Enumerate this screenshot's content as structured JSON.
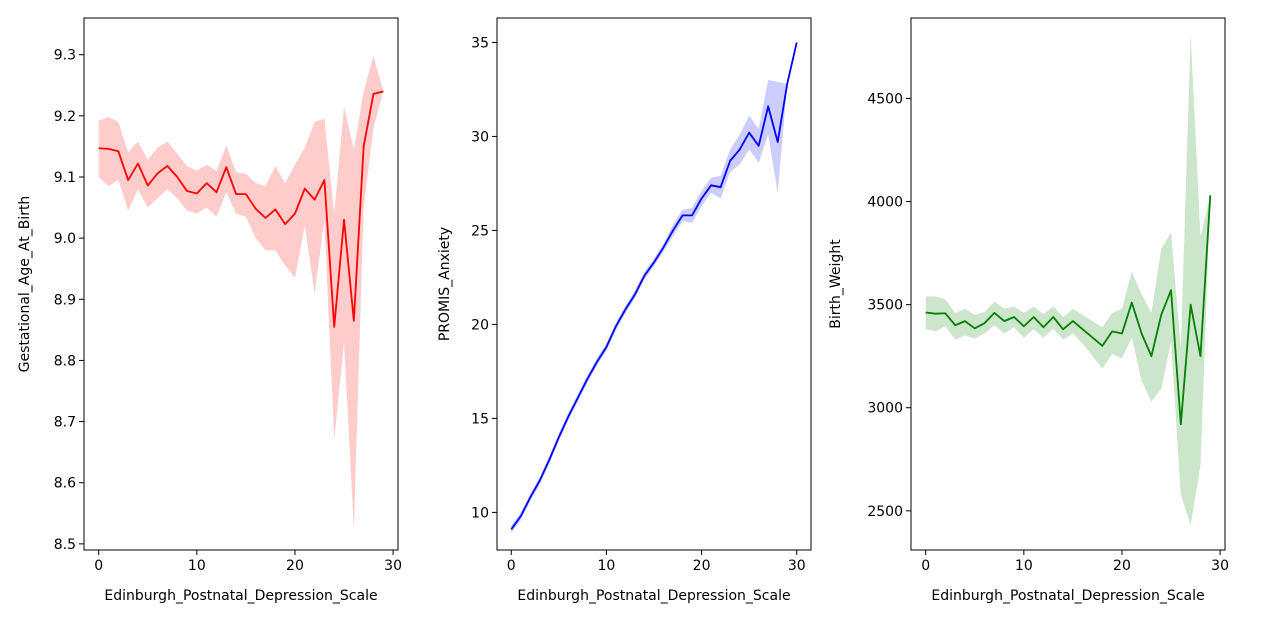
{
  "chart_data": [
    {
      "type": "line",
      "title": "",
      "xlabel": "Edinburgh_Postnatal_Depression_Scale",
      "ylabel": "Gestational_Age_At_Birth",
      "xlim": [
        -1.5,
        30.5
      ],
      "ylim": [
        8.49,
        9.36
      ],
      "xticks": [
        0,
        10,
        20,
        30
      ],
      "yticks": [
        8.5,
        8.6,
        8.7,
        8.8,
        8.9,
        9.0,
        9.1,
        9.2,
        9.3
      ],
      "ytick_labels": [
        "8.5",
        "8.6",
        "8.7",
        "8.8",
        "8.9",
        "9.0",
        "9.1",
        "9.2",
        "9.3"
      ],
      "grid": false,
      "color": "#ff0000",
      "band_color": "#ff0000",
      "series": [
        {
          "x": [
            0,
            1,
            2,
            3,
            4,
            5,
            6,
            7,
            8,
            9,
            10,
            11,
            12,
            13,
            14,
            15,
            16,
            17,
            18,
            19,
            20,
            21,
            22,
            23,
            24,
            25,
            26,
            27,
            28,
            29
          ],
          "y": [
            9.147,
            9.146,
            9.142,
            9.095,
            9.122,
            9.086,
            9.106,
            9.118,
            9.1,
            9.077,
            9.073,
            9.09,
            9.075,
            9.116,
            9.072,
            9.072,
            9.048,
            9.033,
            9.047,
            9.023,
            9.04,
            9.081,
            9.063,
            9.095,
            8.855,
            9.03,
            8.865,
            9.15,
            9.236,
            9.24
          ],
          "lower": [
            9.1,
            9.085,
            9.095,
            9.045,
            9.08,
            9.05,
            9.065,
            9.08,
            9.065,
            9.045,
            9.04,
            9.05,
            9.035,
            9.075,
            9.04,
            9.035,
            9.0,
            8.98,
            8.98,
            8.955,
            8.935,
            9.02,
            8.91,
            9.03,
            8.67,
            8.83,
            8.525,
            9.05,
            9.18,
            9.24
          ],
          "upper": [
            9.192,
            9.198,
            9.19,
            9.14,
            9.158,
            9.128,
            9.148,
            9.158,
            9.138,
            9.118,
            9.11,
            9.12,
            9.11,
            9.152,
            9.108,
            9.105,
            9.09,
            9.085,
            9.118,
            9.09,
            9.12,
            9.148,
            9.19,
            9.195,
            9.04,
            9.215,
            9.145,
            9.24,
            9.298,
            9.24
          ]
        }
      ]
    },
    {
      "type": "line",
      "title": "",
      "xlabel": "Edinburgh_Postnatal_Depression_Scale",
      "ylabel": "PROMIS_Anxiety",
      "xlim": [
        -1.5,
        31.5
      ],
      "ylim": [
        8.0,
        36.3
      ],
      "xticks": [
        0,
        10,
        20,
        30
      ],
      "yticks": [
        10,
        15,
        20,
        25,
        30,
        35
      ],
      "ytick_labels": [
        "10",
        "15",
        "20",
        "25",
        "30",
        "35"
      ],
      "grid": false,
      "color": "#0000ff",
      "band_color": "#0000ff",
      "series": [
        {
          "x": [
            0,
            1,
            2,
            3,
            4,
            5,
            6,
            7,
            8,
            9,
            10,
            11,
            12,
            13,
            14,
            15,
            16,
            17,
            18,
            19,
            20,
            21,
            22,
            23,
            24,
            25,
            26,
            27,
            28,
            29,
            30
          ],
          "y": [
            9.1,
            9.8,
            10.8,
            11.7,
            12.8,
            14.0,
            15.1,
            16.1,
            17.1,
            18.0,
            18.8,
            19.9,
            20.8,
            21.6,
            22.6,
            23.3,
            24.1,
            25.0,
            25.8,
            25.8,
            26.7,
            27.4,
            27.3,
            28.7,
            29.3,
            30.2,
            29.5,
            31.6,
            29.7,
            32.8,
            35.0
          ],
          "lower": [
            8.9,
            9.6,
            10.6,
            11.5,
            12.6,
            13.8,
            14.9,
            15.9,
            16.9,
            17.8,
            18.6,
            19.7,
            20.6,
            21.4,
            22.4,
            23.1,
            23.9,
            24.7,
            25.5,
            25.4,
            26.3,
            27.0,
            26.7,
            28.1,
            28.5,
            29.3,
            28.6,
            30.1,
            27.0,
            32.8,
            35.0
          ],
          "upper": [
            9.3,
            10.0,
            11.0,
            11.9,
            13.0,
            14.2,
            15.3,
            16.3,
            17.3,
            18.2,
            19.0,
            20.1,
            21.0,
            21.8,
            22.8,
            23.5,
            24.3,
            25.3,
            26.1,
            26.2,
            27.1,
            27.8,
            27.9,
            29.3,
            30.1,
            31.1,
            30.4,
            33.0,
            32.9,
            32.8,
            35.0
          ]
        }
      ]
    },
    {
      "type": "line",
      "title": "",
      "xlabel": "Edinburgh_Postnatal_Depression_Scale",
      "ylabel": "Birth_Weight",
      "xlim": [
        -1.5,
        30.5
      ],
      "ylim": [
        2310,
        4890
      ],
      "xticks": [
        0,
        10,
        20,
        30
      ],
      "yticks": [
        2500,
        3000,
        3500,
        4000,
        4500
      ],
      "ytick_labels": [
        "2500",
        "3000",
        "3500",
        "4000",
        "4500"
      ],
      "grid": false,
      "color": "#008000",
      "band_color": "#008000",
      "series": [
        {
          "x": [
            0,
            1,
            2,
            3,
            4,
            5,
            6,
            7,
            8,
            9,
            10,
            11,
            12,
            13,
            14,
            15,
            16,
            17,
            18,
            19,
            20,
            21,
            22,
            23,
            24,
            25,
            26,
            27,
            28,
            29
          ],
          "y": [
            3462,
            3456,
            3458,
            3400,
            3420,
            3385,
            3410,
            3460,
            3420,
            3440,
            3395,
            3440,
            3390,
            3440,
            3380,
            3420,
            3380,
            3340,
            3300,
            3370,
            3360,
            3510,
            3360,
            3250,
            3450,
            3570,
            2920,
            3500,
            3250,
            4030
          ],
          "lower": [
            3380,
            3370,
            3395,
            3330,
            3350,
            3335,
            3360,
            3400,
            3360,
            3390,
            3340,
            3380,
            3340,
            3385,
            3330,
            3360,
            3310,
            3250,
            3190,
            3260,
            3240,
            3340,
            3130,
            3030,
            3090,
            3320,
            2580,
            2430,
            2720,
            4030
          ],
          "upper": [
            3540,
            3540,
            3525,
            3460,
            3480,
            3450,
            3465,
            3515,
            3480,
            3490,
            3460,
            3490,
            3455,
            3490,
            3440,
            3480,
            3450,
            3420,
            3390,
            3460,
            3480,
            3660,
            3550,
            3460,
            3770,
            3850,
            3290,
            4810,
            3830,
            4030
          ]
        }
      ]
    }
  ]
}
